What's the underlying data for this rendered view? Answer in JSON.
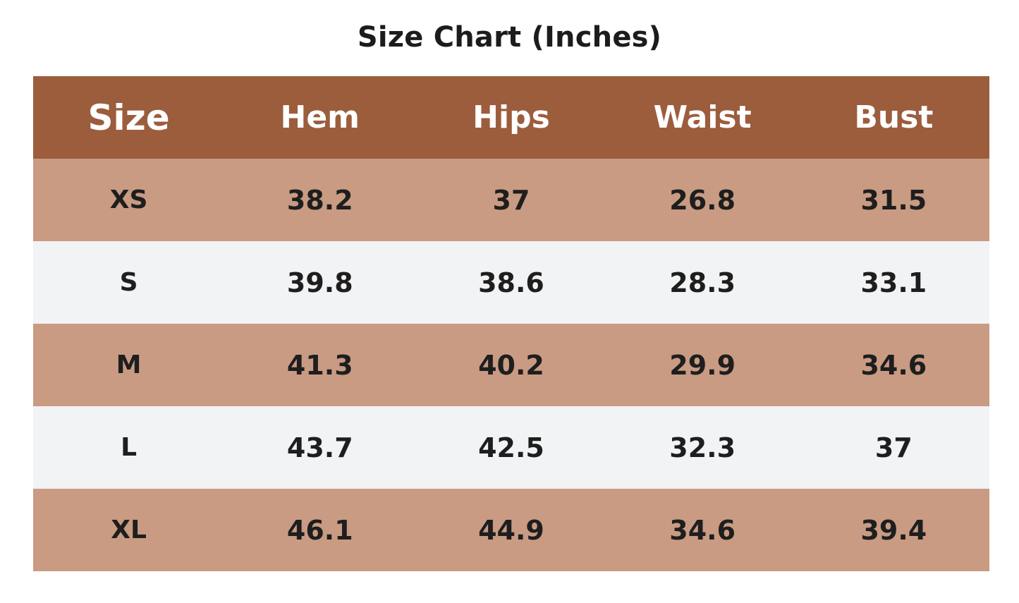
{
  "title": "Size Chart (Inches)",
  "colors": {
    "header_bg": "#9c5d3d",
    "row_tan": "#c99b83",
    "row_light": "#f2f3f5",
    "header_text": "#ffffff",
    "cell_text": "#1e1e1e"
  },
  "chart_data": {
    "type": "table",
    "title": "Size Chart (Inches)",
    "columns": [
      "Size",
      "Hem",
      "Hips",
      "Waist",
      "Bust"
    ],
    "rows": [
      [
        "XS",
        "38.2",
        "37",
        "26.8",
        "31.5"
      ],
      [
        "S",
        "39.8",
        "38.6",
        "28.3",
        "33.1"
      ],
      [
        "M",
        "41.3",
        "40.2",
        "29.9",
        "34.6"
      ],
      [
        "L",
        "43.7",
        "42.5",
        "32.3",
        "37"
      ],
      [
        "XL",
        "46.1",
        "44.9",
        "34.6",
        "39.4"
      ]
    ]
  }
}
